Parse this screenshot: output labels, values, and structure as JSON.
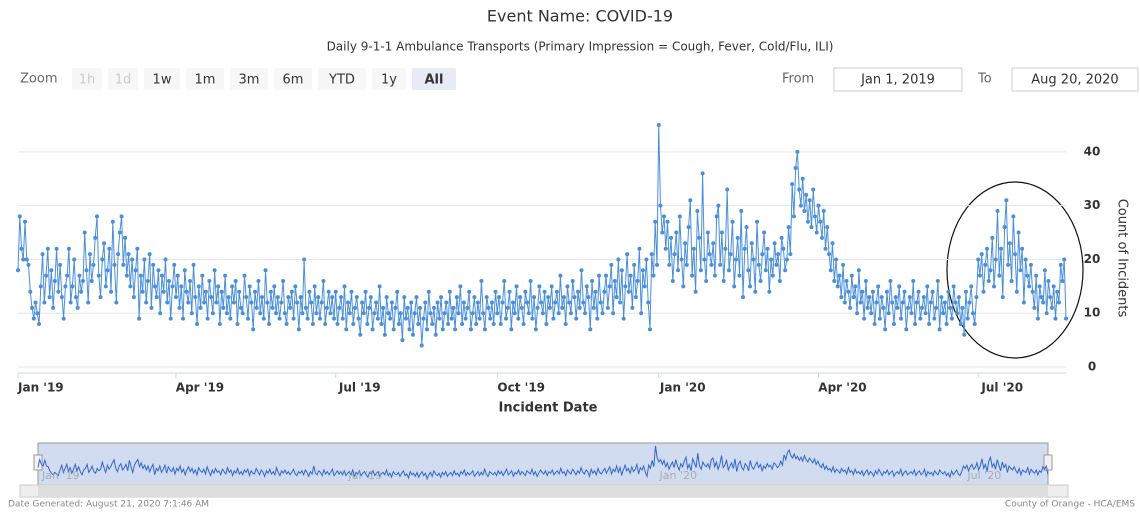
{
  "chart_data": {
    "type": "line",
    "title": "Event Name: COVID-19",
    "subtitle": "Daily 9-1-1 Ambulance Transports (Primary Impression = Cough, Fever, Cold/Flu, ILI)",
    "x_label": "Incident Date",
    "y_label": "Count of Incidents",
    "footer_left": "Date Generated: August 21, 2020 7:1:46 AM",
    "footer_right": "County of Orange - HCA/EMS",
    "ui": {
      "zoom_label": "Zoom",
      "zoom_buttons": [
        "1h",
        "1d",
        "1w",
        "1m",
        "3m",
        "6m",
        "YTD",
        "1y",
        "All"
      ],
      "from_label": "From",
      "from": "Jan 1, 2019",
      "to_label": "To",
      "to": "Aug 20, 2020"
    },
    "xlim": [
      0,
      597
    ],
    "xticks": [
      {
        "value": 0,
        "label": "Jan '19"
      },
      {
        "value": 90,
        "label": "Apr '19"
      },
      {
        "value": 181,
        "label": "Jul '19"
      },
      {
        "value": 273,
        "label": "Oct '19"
      },
      {
        "value": 365,
        "label": "Jan '20"
      },
      {
        "value": 456,
        "label": "Apr '20"
      },
      {
        "value": 547,
        "label": "Jul '20"
      }
    ],
    "ylim": [
      0,
      45
    ],
    "yticks": [
      0,
      10,
      20,
      30,
      40
    ],
    "grid": true,
    "series": [
      {
        "color": "#4a8fd9",
        "values": [
          18,
          28,
          22,
          20,
          27,
          20,
          19,
          14,
          11,
          9,
          12,
          10,
          8,
          15,
          21,
          12,
          17,
          22,
          13,
          18,
          11,
          16,
          22,
          14,
          19,
          13,
          9,
          15,
          17,
          22,
          12,
          15,
          20,
          13,
          11,
          17,
          14,
          16,
          25,
          18,
          12,
          21,
          16,
          19,
          24,
          28,
          17,
          13,
          20,
          23,
          15,
          18,
          22,
          14,
          27,
          19,
          12,
          21,
          25,
          28,
          19,
          24,
          17,
          21,
          15,
          20,
          13,
          18,
          22,
          9,
          17,
          14,
          20,
          12,
          16,
          21,
          11,
          19,
          15,
          13,
          18,
          10,
          17,
          14,
          20,
          12,
          16,
          9,
          15,
          19,
          13,
          17,
          11,
          15,
          9,
          18,
          14,
          12,
          16,
          10,
          19,
          13,
          8,
          15,
          11,
          17,
          12,
          14,
          9,
          16,
          13,
          10,
          18,
          12,
          15,
          8,
          14,
          11,
          17,
          10,
          13,
          9,
          15,
          12,
          16,
          8,
          14,
          11,
          10,
          17,
          13,
          9,
          15,
          12,
          7,
          14,
          11,
          16,
          10,
          13,
          9,
          18,
          12,
          8,
          14,
          11,
          15,
          10,
          13,
          9,
          12,
          16,
          10,
          8,
          13,
          11,
          14,
          9,
          15,
          12,
          7,
          13,
          10,
          20,
          11,
          9,
          14,
          12,
          8,
          15,
          10,
          13,
          9,
          12,
          16,
          8,
          11,
          14,
          10,
          13,
          9,
          14,
          8,
          11,
          13,
          9,
          15,
          7,
          12,
          10,
          14,
          8,
          11,
          13,
          9,
          6,
          12,
          10,
          14,
          8,
          11,
          13,
          7,
          10,
          12,
          9,
          15,
          8,
          11,
          6,
          13,
          10,
          9,
          12,
          7,
          11,
          14,
          8,
          10,
          5,
          13,
          9,
          11,
          7,
          12,
          6,
          10,
          13,
          8,
          11,
          4,
          9,
          12,
          7,
          14,
          10,
          8,
          11,
          6,
          12,
          9,
          13,
          7,
          10,
          12,
          8,
          14,
          9,
          11,
          7,
          13,
          10,
          15,
          8,
          12,
          9,
          11,
          14,
          7,
          10,
          13,
          8,
          12,
          9,
          16,
          10,
          7,
          13,
          11,
          9,
          12,
          8,
          14,
          10,
          13,
          8,
          12,
          16,
          9,
          11,
          14,
          7,
          12,
          10,
          15,
          9,
          13,
          11,
          8,
          14,
          12,
          10,
          16,
          9,
          13,
          7,
          11,
          15,
          12,
          10,
          14,
          8,
          13,
          11,
          15,
          9,
          12,
          14,
          10,
          17,
          11,
          13,
          8,
          15,
          12,
          10,
          16,
          13,
          9,
          14,
          11,
          18,
          12,
          10,
          15,
          13,
          7,
          16,
          11,
          14,
          9,
          17,
          12,
          10,
          14,
          17,
          11,
          15,
          19,
          10,
          16,
          13,
          20,
          12,
          18,
          9,
          15,
          21,
          14,
          17,
          11,
          19,
          13,
          16,
          22,
          10,
          18,
          15,
          20,
          12,
          7,
          21,
          17,
          27,
          19,
          45,
          30,
          25,
          28,
          22,
          27,
          19,
          24,
          16,
          21,
          25,
          18,
          28,
          20,
          15,
          23,
          19,
          26,
          31,
          17,
          22,
          14,
          29,
          24,
          18,
          36,
          20,
          16,
          25,
          21,
          19,
          23,
          17,
          28,
          30,
          19,
          25,
          16,
          22,
          33,
          18,
          21,
          27,
          15,
          20,
          24,
          17,
          29,
          13,
          22,
          26,
          18,
          15,
          23,
          20,
          14,
          27,
          19,
          16,
          21,
          25,
          18,
          22,
          14,
          20,
          17,
          23,
          19,
          21,
          16,
          24,
          22,
          18,
          20,
          26,
          21,
          34,
          28,
          37,
          40,
          33,
          30,
          35,
          29,
          32,
          27,
          31,
          26,
          33,
          28,
          25,
          30,
          27,
          24,
          29,
          22,
          26,
          21,
          18,
          23,
          16,
          20,
          15,
          17,
          13,
          19,
          12,
          16,
          14,
          11,
          17,
          13,
          15,
          10,
          18,
          12,
          14,
          9,
          16,
          11,
          13,
          10,
          14,
          8,
          12,
          15,
          9,
          13,
          11,
          7,
          14,
          10,
          16,
          12,
          8,
          13,
          11,
          15,
          9,
          12,
          14,
          7,
          11,
          13,
          10,
          16,
          8,
          12,
          14,
          9,
          11,
          13,
          10,
          15,
          8,
          12,
          14,
          9,
          11,
          16,
          7,
          13,
          10,
          12,
          8,
          14,
          11,
          9,
          15,
          12,
          10,
          13,
          8,
          11,
          6,
          14,
          9,
          12,
          15,
          10,
          8,
          13,
          20,
          17,
          21,
          14,
          19,
          22,
          16,
          18,
          24,
          15,
          20,
          29,
          17,
          22,
          13,
          26,
          31,
          19,
          23,
          16,
          28,
          21,
          14,
          25,
          18,
          22,
          12,
          20,
          17,
          15,
          19,
          14,
          11,
          17,
          9,
          15,
          13,
          12,
          18,
          10,
          16,
          13,
          11,
          15,
          9,
          14,
          12,
          19,
          16,
          20,
          9
        ]
      }
    ]
  }
}
